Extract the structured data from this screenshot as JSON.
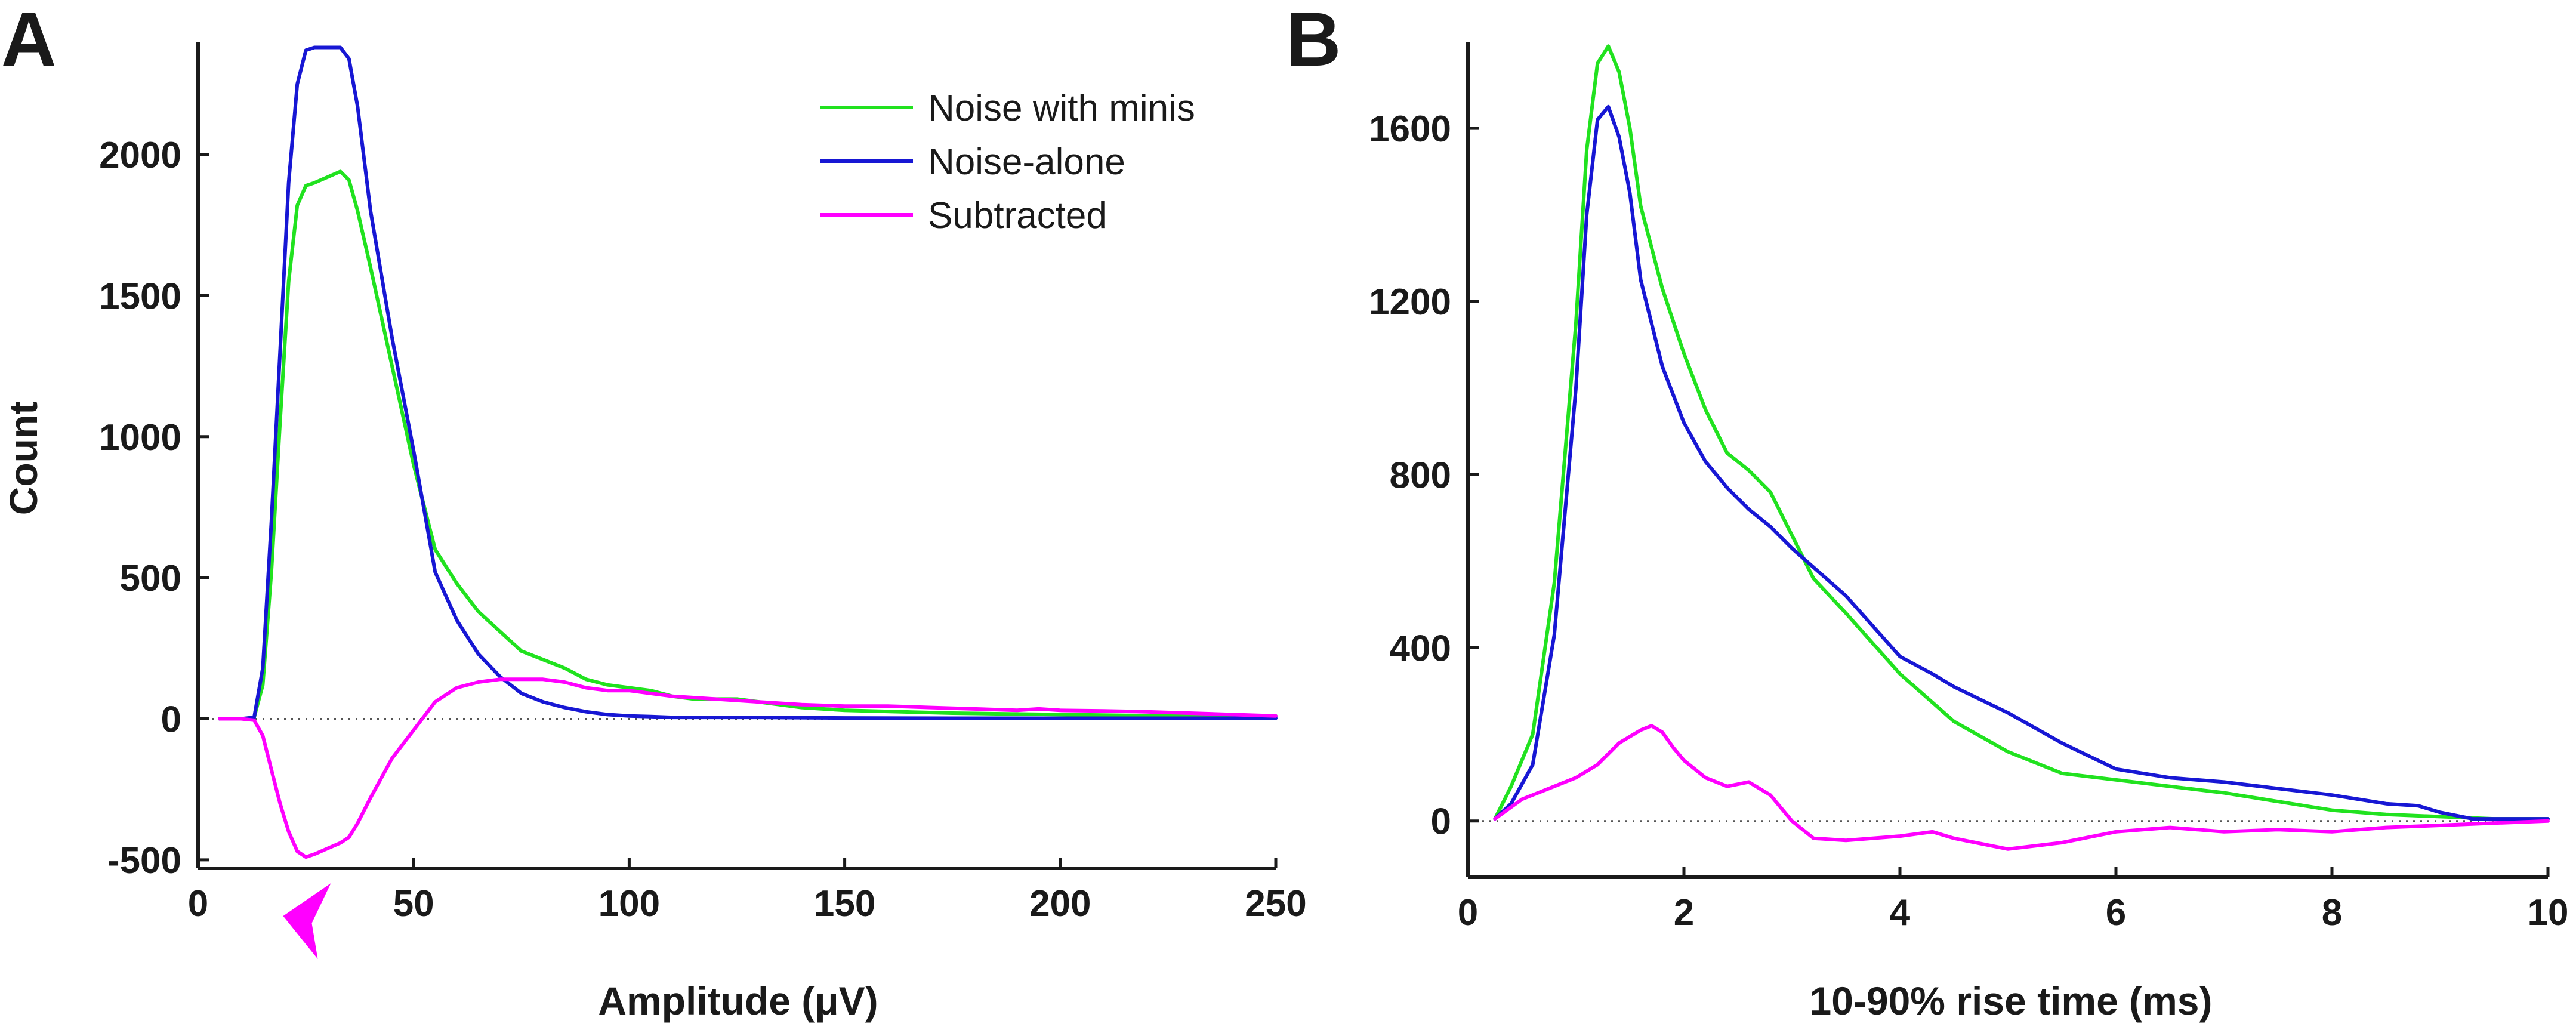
{
  "chart_data": [
    {
      "type": "line",
      "panel_label": "A",
      "xlabel": "Amplitude (μV)",
      "ylabel": "Count",
      "xlim": [
        0,
        250
      ],
      "ylim": [
        -530,
        2400
      ],
      "xticks": [
        0,
        50,
        100,
        150,
        200,
        250
      ],
      "yticks": [
        -500,
        0,
        500,
        1000,
        1500,
        2000
      ],
      "zero_line": true,
      "legend": {
        "placement": "top-right",
        "entries": [
          "Noise with minis",
          "Noise-alone",
          "Subtracted"
        ]
      },
      "marker": {
        "shape": "arrowhead",
        "color": "#ff00ff",
        "x": 20
      },
      "series": [
        {
          "name": "Noise with minis",
          "color": "#21e21f",
          "x": [
            5,
            10,
            13,
            15,
            17,
            19,
            21,
            23,
            25,
            27,
            30,
            33,
            35,
            37,
            40,
            45,
            50,
            55,
            60,
            65,
            70,
            75,
            80,
            85,
            90,
            95,
            100,
            105,
            110,
            115,
            120,
            125,
            130,
            140,
            150,
            175,
            200,
            225,
            250
          ],
          "y": [
            0,
            0,
            5,
            120,
            520,
            1050,
            1550,
            1820,
            1890,
            1900,
            1920,
            1940,
            1910,
            1800,
            1600,
            1250,
            900,
            600,
            480,
            380,
            310,
            240,
            210,
            180,
            140,
            120,
            110,
            100,
            80,
            70,
            70,
            70,
            60,
            40,
            30,
            20,
            15,
            10,
            10
          ]
        },
        {
          "name": "Noise-alone",
          "color": "#1717d4",
          "x": [
            5,
            10,
            13,
            15,
            17,
            19,
            21,
            23,
            25,
            27,
            30,
            33,
            35,
            37,
            40,
            45,
            50,
            55,
            60,
            65,
            70,
            75,
            80,
            85,
            90,
            95,
            100,
            105,
            110,
            115,
            120,
            130,
            140,
            150,
            175,
            200,
            225,
            250
          ],
          "y": [
            0,
            0,
            5,
            180,
            700,
            1300,
            1900,
            2250,
            2370,
            2380,
            2380,
            2380,
            2340,
            2170,
            1800,
            1350,
            950,
            520,
            350,
            230,
            150,
            90,
            60,
            40,
            25,
            15,
            10,
            8,
            5,
            5,
            5,
            5,
            4,
            3,
            2,
            2,
            2,
            2
          ]
        },
        {
          "name": "Subtracted",
          "color": "#ff00ff",
          "x": [
            5,
            10,
            13,
            15,
            17,
            19,
            21,
            23,
            25,
            27,
            30,
            33,
            35,
            37,
            40,
            45,
            50,
            55,
            60,
            65,
            70,
            75,
            80,
            85,
            90,
            95,
            100,
            105,
            110,
            120,
            130,
            140,
            150,
            160,
            170,
            180,
            190,
            195,
            200,
            210,
            220,
            230,
            240,
            250
          ],
          "y": [
            0,
            0,
            -5,
            -60,
            -180,
            -300,
            -400,
            -470,
            -490,
            -480,
            -460,
            -440,
            -420,
            -370,
            -280,
            -140,
            -40,
            60,
            110,
            130,
            140,
            140,
            140,
            130,
            110,
            100,
            100,
            90,
            80,
            70,
            60,
            50,
            45,
            45,
            40,
            35,
            30,
            35,
            30,
            28,
            25,
            20,
            15,
            10
          ]
        }
      ]
    },
    {
      "type": "line",
      "panel_label": "B",
      "xlabel": "10-90% rise time (ms)",
      "ylabel": "",
      "xlim": [
        0,
        10
      ],
      "ylim": [
        -130,
        1800
      ],
      "xticks": [
        0,
        2,
        4,
        6,
        8,
        10
      ],
      "yticks": [
        0,
        400,
        800,
        1200,
        1600
      ],
      "zero_line": true,
      "series": [
        {
          "name": "Noise with minis",
          "color": "#21e21f",
          "x": [
            0.25,
            0.4,
            0.6,
            0.8,
            1.0,
            1.1,
            1.2,
            1.3,
            1.4,
            1.5,
            1.6,
            1.8,
            2.0,
            2.2,
            2.4,
            2.6,
            2.8,
            3.0,
            3.2,
            3.5,
            4.0,
            4.5,
            5.0,
            5.5,
            6.0,
            6.5,
            7.0,
            7.5,
            8.0,
            8.5,
            9.0,
            9.5,
            10.0
          ],
          "y": [
            5,
            80,
            200,
            550,
            1150,
            1550,
            1750,
            1790,
            1730,
            1600,
            1420,
            1230,
            1080,
            950,
            850,
            810,
            760,
            660,
            560,
            480,
            340,
            230,
            160,
            110,
            95,
            80,
            65,
            45,
            25,
            15,
            10,
            5,
            5
          ]
        },
        {
          "name": "Noise-alone",
          "color": "#1717d4",
          "x": [
            0.25,
            0.4,
            0.6,
            0.8,
            1.0,
            1.1,
            1.2,
            1.3,
            1.4,
            1.5,
            1.6,
            1.8,
            2.0,
            2.2,
            2.4,
            2.6,
            2.8,
            3.0,
            3.5,
            4.0,
            4.3,
            4.5,
            5.0,
            5.5,
            6.0,
            6.5,
            7.0,
            7.5,
            8.0,
            8.5,
            8.8,
            9.0,
            9.3,
            10.0
          ],
          "y": [
            5,
            40,
            130,
            430,
            1000,
            1400,
            1620,
            1650,
            1580,
            1450,
            1250,
            1050,
            920,
            830,
            770,
            720,
            680,
            630,
            520,
            380,
            340,
            310,
            250,
            180,
            120,
            100,
            90,
            75,
            60,
            40,
            35,
            20,
            5,
            5
          ]
        },
        {
          "name": "Subtracted",
          "color": "#ff00ff",
          "x": [
            0.25,
            0.5,
            0.8,
            1.0,
            1.2,
            1.4,
            1.6,
            1.7,
            1.8,
            1.9,
            2.0,
            2.2,
            2.4,
            2.6,
            2.8,
            3.0,
            3.2,
            3.5,
            4.0,
            4.3,
            4.5,
            5.0,
            5.5,
            6.0,
            6.5,
            7.0,
            7.5,
            8.0,
            8.5,
            9.0,
            9.5,
            10.0
          ],
          "y": [
            5,
            50,
            80,
            100,
            130,
            180,
            210,
            220,
            205,
            170,
            140,
            100,
            80,
            90,
            60,
            0,
            -40,
            -45,
            -35,
            -25,
            -40,
            -65,
            -50,
            -25,
            -15,
            -25,
            -20,
            -25,
            -15,
            -10,
            -5,
            0
          ]
        }
      ]
    }
  ]
}
